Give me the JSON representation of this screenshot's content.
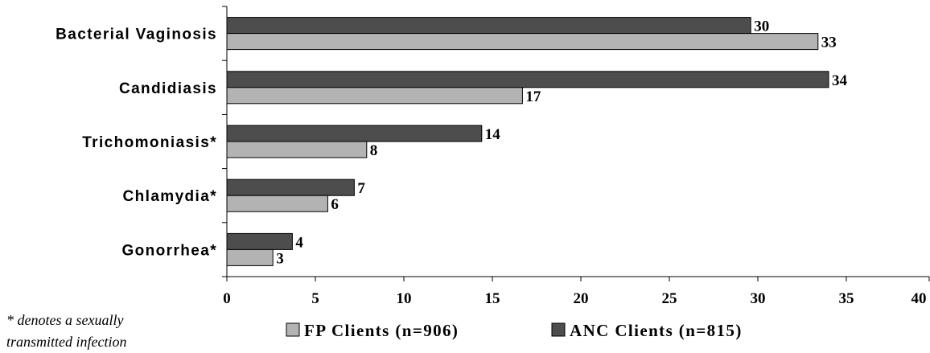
{
  "chart_data": {
    "type": "bar",
    "orientation": "horizontal",
    "categories": [
      "Bacterial Vaginosis",
      "Candidiasis",
      "Trichomoniasis*",
      "Chlamydia*",
      "Gonorrhea*"
    ],
    "series": [
      {
        "name": "ANC Clients (n=815)",
        "color": "#4d4d4d",
        "values": [
          30,
          34,
          14,
          7,
          4
        ],
        "data_values": [
          29.6,
          34.0,
          14.4,
          7.2,
          3.7
        ]
      },
      {
        "name": "FP Clients (n=906)",
        "color": "#b3b3b3",
        "values": [
          33,
          17,
          8,
          6,
          3
        ],
        "data_values": [
          33.4,
          16.7,
          7.9,
          5.7,
          2.6
        ]
      }
    ],
    "x_ticks": [
      0,
      5,
      10,
      15,
      20,
      25,
      30,
      35,
      40
    ],
    "xlim": [
      0,
      40
    ],
    "grid": false,
    "legend": {
      "placement": "bottom",
      "order": [
        "FP Clients (n=906)",
        "ANC Clients (n=815)"
      ]
    }
  },
  "footnote": {
    "line1": "* denotes a sexually",
    "line2": "transmitted infection"
  }
}
